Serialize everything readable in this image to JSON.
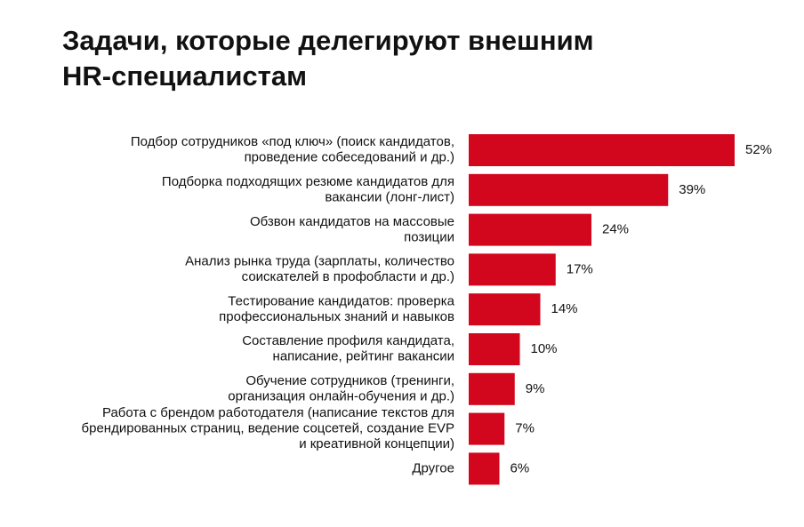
{
  "chart_data": {
    "type": "bar",
    "orientation": "horizontal",
    "title": [
      "Задачи, которые делегируют внешним",
      "HR-специалистам"
    ],
    "categories": [
      [
        "Подбор сотрудников «под ключ» (поиск кандидатов,",
        "проведение собеседований и др.)"
      ],
      [
        "Подборка подходящих резюме кандидатов для",
        "вакансии (лонг-лист)"
      ],
      [
        "Обзвон кандидатов на массовые",
        "позиции"
      ],
      [
        "Анализ рынка труда (зарплаты, количество",
        "соискателей в профобласти и др.)"
      ],
      [
        "Тестирование кандидатов: проверка",
        "профессиональных знаний и навыков"
      ],
      [
        "Составление профиля кандидата,",
        "написание, рейтинг вакансии"
      ],
      [
        "Обучение сотрудников (тренинги,",
        "организация онлайн-обучения и др.)"
      ],
      [
        "Работа с брендом работодателя (написание текстов для",
        "брендированных страниц, ведение соцсетей, создание EVP",
        "и креативной концепции)"
      ],
      [
        "Другое"
      ]
    ],
    "values": [
      52,
      39,
      24,
      17,
      14,
      10,
      9,
      7,
      6
    ],
    "value_labels": [
      "52%",
      "39%",
      "24%",
      "17%",
      "14%",
      "10%",
      "9%",
      "7%",
      "6%"
    ],
    "color": "#d2061c",
    "xlim": [
      0,
      52
    ]
  }
}
